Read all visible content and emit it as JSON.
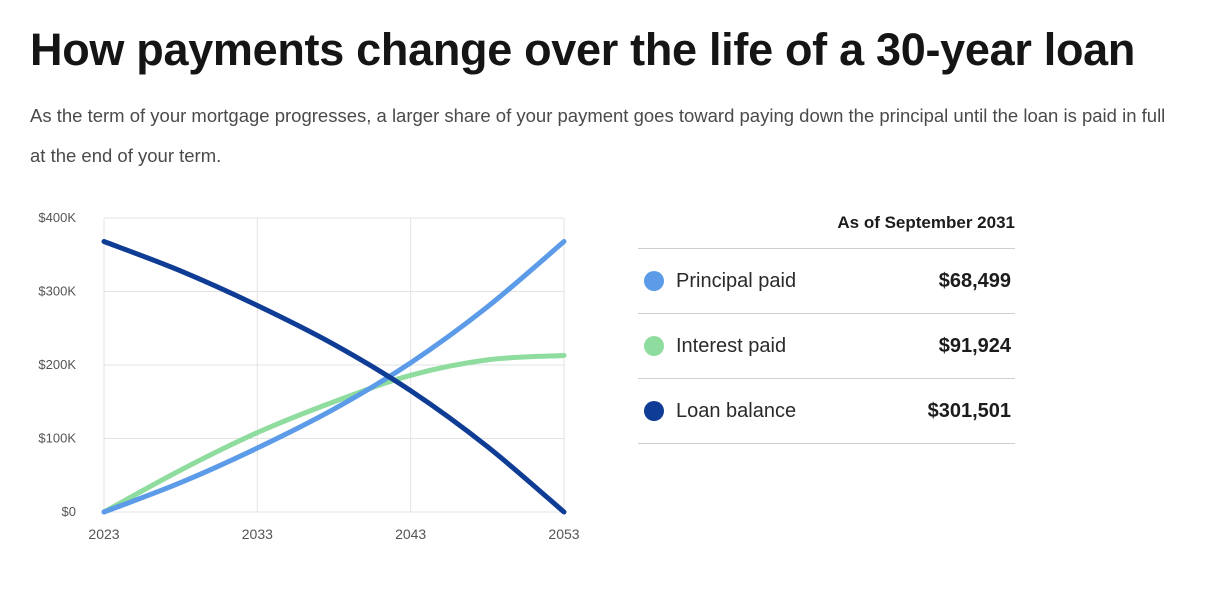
{
  "title": "How payments change over the life of a 30-year loan",
  "subtitle": "As the term of your mortgage progresses, a larger share of your payment goes toward paying down the principal until the loan is paid in full at the end of your term.",
  "legend_panel": {
    "header": "As of September 2031",
    "rows": [
      {
        "label": "Principal paid",
        "value": "$68,499",
        "color": "#5b9be8"
      },
      {
        "label": "Interest paid",
        "value": "$91,924",
        "color": "#8fdc9f"
      },
      {
        "label": "Loan balance",
        "value": "$301,501",
        "color": "#0f3c94"
      }
    ]
  },
  "chart_data": {
    "type": "line",
    "x_tick_labels": [
      "2023",
      "2033",
      "2043",
      "2053"
    ],
    "y_tick_labels": [
      "$0",
      "$100K",
      "$200K",
      "$300K",
      "$400K"
    ],
    "xlim": [
      2023,
      2053
    ],
    "ylim": [
      0,
      400000
    ],
    "grid": true,
    "x": [
      2023,
      2028,
      2033,
      2038,
      2043,
      2048,
      2053
    ],
    "series": [
      {
        "name": "Principal paid",
        "color": "#5b9be8",
        "values": [
          0,
          40000,
          87000,
          140000,
          203000,
          279000,
          368000
        ]
      },
      {
        "name": "Interest paid",
        "color": "#8fdc9f",
        "values": [
          0,
          57000,
          108000,
          150000,
          186000,
          207000,
          213000
        ]
      },
      {
        "name": "Loan balance",
        "color": "#0f3c94",
        "values": [
          368000,
          328000,
          281000,
          228000,
          165000,
          89000,
          0
        ]
      }
    ]
  }
}
